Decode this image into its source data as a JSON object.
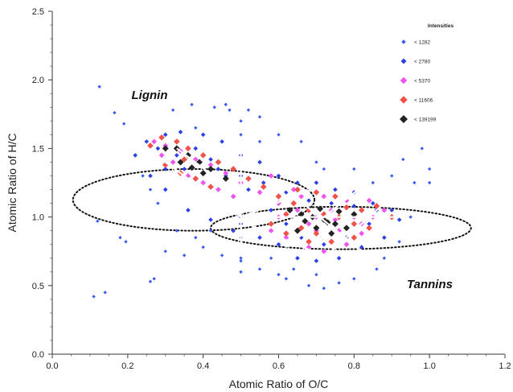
{
  "chart_data": {
    "type": "scatter",
    "title": "",
    "xlabel": "Atomic Ratio of O/C",
    "ylabel": "Atomic Ratio of H/C",
    "xlim": [
      0,
      1.2
    ],
    "ylim": [
      0,
      2.5
    ],
    "x_ticks": [
      "0.0",
      "0.2",
      "0.4",
      "0.6",
      "0.8",
      "1.0",
      "1.2"
    ],
    "y_ticks": [
      "0.0",
      "0.5",
      "1.0",
      "1.5",
      "2.0",
      "2.5"
    ],
    "grid": false,
    "legend": {
      "title": "Intensities",
      "placement": "top-right",
      "entries": [
        {
          "label": "<  1282",
          "color": "#3a5cf0",
          "size": 1
        },
        {
          "label": "<  2780",
          "color": "#2b3fe6",
          "size": 2
        },
        {
          "label": "<  5370",
          "color": "#ee55ee",
          "size": 3
        },
        {
          "label": "<  11606",
          "color": "#f0524a",
          "size": 4
        },
        {
          "label": "< 139199",
          "color": "#222222",
          "size": 5
        }
      ]
    },
    "annotations": [
      {
        "text": "Lignin",
        "x": 0.21,
        "y": 1.86
      },
      {
        "text": "Tannins",
        "x": 0.94,
        "y": 0.48
      }
    ],
    "regions": [
      {
        "name": "Lignin",
        "center": [
          0.375,
          1.125
        ],
        "radius": [
          0.225,
          0.32
        ]
      },
      {
        "name": "Tannins",
        "center": [
          0.765,
          0.92
        ],
        "radius": [
          0.155,
          0.345
        ]
      }
    ],
    "series": [
      {
        "color_class": "<  1282",
        "points": [
          [
            0.125,
            1.95
          ],
          [
            0.165,
            1.76
          ],
          [
            0.19,
            1.68
          ],
          [
            0.12,
            0.97
          ],
          [
            0.11,
            0.42
          ],
          [
            0.14,
            0.45
          ],
          [
            0.18,
            0.85
          ],
          [
            0.195,
            0.82
          ],
          [
            0.26,
            0.53
          ],
          [
            0.32,
            1.78
          ],
          [
            0.37,
            1.82
          ],
          [
            0.43,
            1.8
          ],
          [
            0.46,
            1.82
          ],
          [
            0.47,
            1.78
          ],
          [
            0.52,
            1.78
          ],
          [
            0.55,
            1.73
          ],
          [
            0.6,
            1.6
          ],
          [
            0.66,
            1.55
          ],
          [
            0.55,
            1.55
          ],
          [
            0.38,
            1.65
          ],
          [
            0.3,
            0.75
          ],
          [
            0.35,
            0.72
          ],
          [
            0.4,
            0.78
          ],
          [
            0.45,
            0.72
          ],
          [
            0.5,
            0.68
          ],
          [
            0.58,
            0.7
          ],
          [
            0.6,
            0.58
          ],
          [
            0.62,
            0.55
          ],
          [
            0.64,
            0.62
          ],
          [
            0.68,
            0.5
          ],
          [
            0.72,
            0.48
          ],
          [
            0.76,
            0.52
          ],
          [
            0.8,
            0.55
          ],
          [
            0.86,
            0.62
          ],
          [
            0.88,
            0.7
          ],
          [
            0.92,
            0.82
          ],
          [
            0.95,
            1.0
          ],
          [
            0.96,
            1.25
          ],
          [
            0.98,
            1.5
          ],
          [
            1.0,
            1.35
          ],
          [
            1.0,
            1.25
          ],
          [
            0.9,
            1.3
          ],
          [
            0.93,
            1.42
          ],
          [
            0.7,
            1.4
          ],
          [
            0.72,
            1.35
          ],
          [
            0.28,
            1.1
          ],
          [
            0.26,
            1.2
          ],
          [
            0.24,
            1.3
          ],
          [
            0.33,
            0.9
          ],
          [
            0.38,
            0.85
          ],
          [
            0.42,
            0.9
          ],
          [
            0.27,
            0.55
          ],
          [
            0.5,
            0.85
          ],
          [
            0.55,
            0.62
          ],
          [
            0.7,
            0.58
          ],
          [
            0.8,
            1.35
          ],
          [
            0.85,
            1.25
          ],
          [
            0.5,
            0.7
          ],
          [
            0.5,
            0.6
          ],
          [
            0.5,
            1.6
          ],
          [
            0.5,
            1.7
          ]
        ]
      },
      {
        "color_class": "<  2780",
        "points": [
          [
            0.22,
            1.45
          ],
          [
            0.25,
            1.55
          ],
          [
            0.3,
            1.6
          ],
          [
            0.34,
            1.62
          ],
          [
            0.4,
            1.6
          ],
          [
            0.45,
            1.55
          ],
          [
            0.5,
            1.45
          ],
          [
            0.55,
            1.4
          ],
          [
            0.6,
            1.3
          ],
          [
            0.65,
            1.25
          ],
          [
            0.7,
            1.25
          ],
          [
            0.75,
            1.2
          ],
          [
            0.8,
            1.18
          ],
          [
            0.85,
            1.1
          ],
          [
            0.9,
            1.05
          ],
          [
            0.92,
            0.98
          ],
          [
            0.88,
            0.85
          ],
          [
            0.82,
            0.78
          ],
          [
            0.76,
            0.7
          ],
          [
            0.7,
            0.68
          ],
          [
            0.65,
            0.7
          ],
          [
            0.6,
            0.8
          ],
          [
            0.55,
            0.85
          ],
          [
            0.48,
            0.9
          ],
          [
            0.42,
            0.98
          ],
          [
            0.36,
            1.05
          ],
          [
            0.3,
            1.2
          ],
          [
            0.26,
            1.3
          ],
          [
            0.28,
            1.5
          ],
          [
            0.33,
            1.45
          ],
          [
            0.38,
            1.5
          ],
          [
            0.42,
            1.42
          ],
          [
            0.46,
            1.3
          ],
          [
            0.52,
            1.2
          ],
          [
            0.58,
            1.05
          ],
          [
            0.62,
            0.95
          ],
          [
            0.66,
            0.85
          ],
          [
            0.72,
            0.8
          ],
          [
            0.78,
            0.85
          ],
          [
            0.84,
            0.95
          ],
          [
            0.86,
            1.05
          ],
          [
            0.8,
            1.08
          ],
          [
            0.74,
            1.1
          ],
          [
            0.68,
            1.12
          ],
          [
            0.62,
            1.18
          ],
          [
            0.56,
            1.25
          ],
          [
            0.5,
            1.3
          ],
          [
            0.44,
            1.35
          ],
          [
            0.35,
            1.35
          ],
          [
            0.3,
            1.35
          ],
          [
            0.5,
            1.0
          ],
          [
            0.5,
            0.95
          ]
        ]
      },
      {
        "color_class": "<  5370",
        "points": [
          [
            0.27,
            1.55
          ],
          [
            0.3,
            1.52
          ],
          [
            0.34,
            1.48
          ],
          [
            0.38,
            1.42
          ],
          [
            0.42,
            1.38
          ],
          [
            0.46,
            1.32
          ],
          [
            0.5,
            1.25
          ],
          [
            0.55,
            1.18
          ],
          [
            0.6,
            1.1
          ],
          [
            0.65,
            1.05
          ],
          [
            0.7,
            1.0
          ],
          [
            0.75,
            0.98
          ],
          [
            0.8,
            1.0
          ],
          [
            0.85,
            1.0
          ],
          [
            0.88,
            1.05
          ],
          [
            0.82,
            0.88
          ],
          [
            0.78,
            0.8
          ],
          [
            0.72,
            0.75
          ],
          [
            0.68,
            0.78
          ],
          [
            0.62,
            0.85
          ],
          [
            0.58,
            0.9
          ],
          [
            0.36,
            1.3
          ],
          [
            0.4,
            1.25
          ],
          [
            0.44,
            1.2
          ],
          [
            0.48,
            1.15
          ],
          [
            0.66,
            1.15
          ],
          [
            0.72,
            1.15
          ],
          [
            0.78,
            1.12
          ],
          [
            0.84,
            1.12
          ],
          [
            0.32,
            1.4
          ],
          [
            0.29,
            1.45
          ],
          [
            0.58,
            1.3
          ],
          [
            0.64,
            1.2
          ],
          [
            0.7,
            0.9
          ],
          [
            0.76,
            0.9
          ],
          [
            0.82,
            0.95
          ],
          [
            0.74,
            1.05
          ],
          [
            0.68,
            0.95
          ],
          [
            0.6,
            1.0
          ]
        ]
      },
      {
        "color_class": "<  11606",
        "points": [
          [
            0.26,
            1.52
          ],
          [
            0.29,
            1.58
          ],
          [
            0.33,
            1.55
          ],
          [
            0.36,
            1.5
          ],
          [
            0.4,
            1.45
          ],
          [
            0.44,
            1.4
          ],
          [
            0.48,
            1.35
          ],
          [
            0.52,
            1.28
          ],
          [
            0.56,
            1.22
          ],
          [
            0.6,
            1.15
          ],
          [
            0.64,
            1.1
          ],
          [
            0.68,
            1.05
          ],
          [
            0.72,
            1.02
          ],
          [
            0.76,
            1.0
          ],
          [
            0.8,
            0.95
          ],
          [
            0.84,
            0.92
          ],
          [
            0.8,
            0.85
          ],
          [
            0.74,
            0.82
          ],
          [
            0.68,
            0.82
          ],
          [
            0.62,
            0.88
          ],
          [
            0.58,
            0.95
          ],
          [
            0.3,
            1.38
          ],
          [
            0.34,
            1.32
          ],
          [
            0.38,
            1.28
          ],
          [
            0.42,
            1.22
          ],
          [
            0.65,
            1.2
          ],
          [
            0.7,
            1.18
          ],
          [
            0.75,
            1.15
          ],
          [
            0.86,
            1.08
          ],
          [
            0.9,
            1.0
          ],
          [
            0.66,
            0.92
          ],
          [
            0.7,
            0.88
          ],
          [
            0.78,
            1.07
          ],
          [
            0.82,
            1.05
          ],
          [
            0.62,
            1.02
          ],
          [
            0.35,
            1.42
          ]
        ]
      },
      {
        "color_class": "< 139199",
        "points": [
          [
            0.3,
            1.5
          ],
          [
            0.33,
            1.5
          ],
          [
            0.36,
            1.45
          ],
          [
            0.39,
            1.4
          ],
          [
            0.42,
            1.35
          ],
          [
            0.46,
            1.28
          ],
          [
            0.63,
            1.05
          ],
          [
            0.66,
            1.02
          ],
          [
            0.69,
            1.0
          ],
          [
            0.72,
            0.98
          ],
          [
            0.75,
            0.95
          ],
          [
            0.78,
            0.92
          ],
          [
            0.7,
            0.92
          ],
          [
            0.74,
            0.88
          ],
          [
            0.67,
            0.97
          ],
          [
            0.71,
            1.06
          ],
          [
            0.76,
            1.04
          ],
          [
            0.8,
            1.02
          ],
          [
            0.73,
            0.96
          ],
          [
            0.65,
            0.9
          ],
          [
            0.34,
            1.4
          ],
          [
            0.37,
            1.36
          ],
          [
            0.4,
            1.32
          ]
        ]
      }
    ]
  }
}
